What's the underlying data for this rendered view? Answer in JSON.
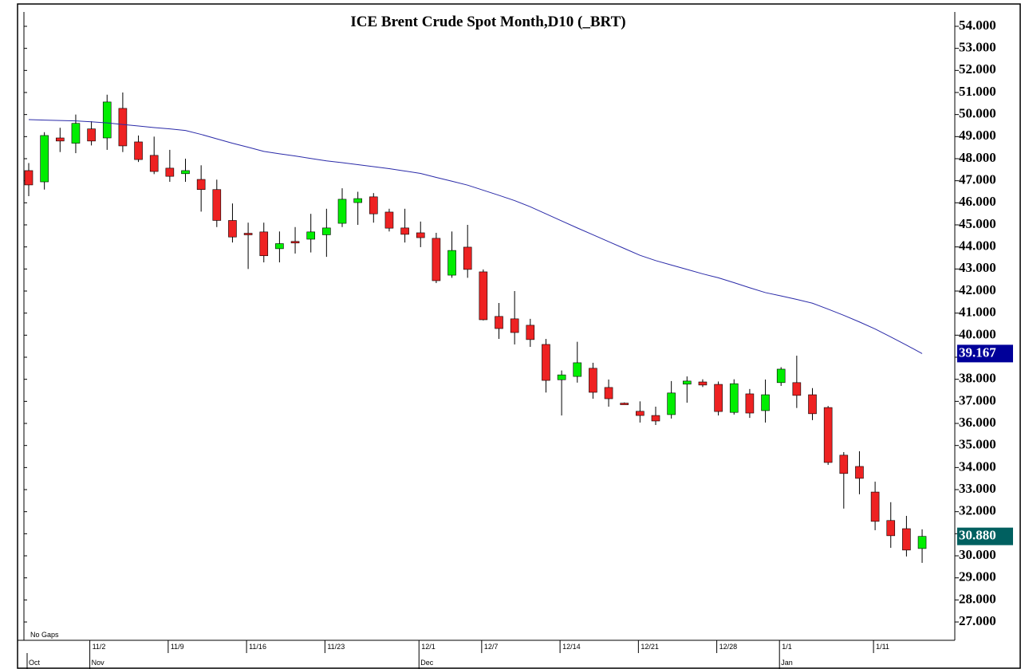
{
  "chart_data": {
    "type": "candlestick",
    "title": "ICE Brent Crude Spot Month,D10 (_BRT)",
    "note": "No Gaps",
    "categories": [
      null,
      null,
      null,
      null,
      "11/2",
      null,
      null,
      null,
      null,
      "11/9",
      null,
      null,
      null,
      null,
      "11/16",
      null,
      null,
      null,
      null,
      "11/23",
      null,
      null,
      null,
      null,
      null,
      "12/1",
      null,
      null,
      null,
      "12/7",
      null,
      null,
      null,
      null,
      "12/14",
      null,
      null,
      null,
      null,
      "12/21",
      null,
      null,
      null,
      null,
      "12/28",
      null,
      null,
      null,
      "1/1",
      null,
      null,
      null,
      null,
      null,
      "1/11",
      null,
      null,
      null
    ],
    "months": [
      "Oct",
      null,
      null,
      null,
      "Nov",
      null,
      null,
      null,
      null,
      null,
      null,
      null,
      null,
      null,
      null,
      null,
      null,
      null,
      null,
      null,
      null,
      null,
      null,
      null,
      null,
      "Dec",
      null,
      null,
      null,
      null,
      null,
      null,
      null,
      null,
      null,
      null,
      null,
      null,
      null,
      null,
      null,
      null,
      null,
      null,
      null,
      null,
      null,
      null,
      "Jan",
      null,
      null,
      null,
      null,
      null,
      null,
      null,
      null,
      null
    ],
    "open": [
      47.46,
      46.95,
      48.94,
      48.7,
      49.35,
      48.94,
      50.28,
      48.76,
      48.15,
      47.57,
      47.32,
      47.06,
      46.6,
      45.2,
      44.62,
      44.68,
      43.92,
      44.25,
      44.35,
      44.55,
      45.07,
      46.01,
      46.27,
      45.58,
      44.86,
      44.64,
      44.39,
      42.72,
      43.99,
      42.87,
      40.85,
      40.74,
      40.45,
      39.58,
      37.98,
      38.13,
      38.5,
      37.63,
      36.92,
      36.55,
      36.36,
      36.4,
      37.78,
      37.88,
      37.77,
      36.5,
      37.34,
      36.58,
      37.85,
      37.85,
      37.3,
      36.72,
      34.56,
      34.05,
      32.89,
      31.6,
      31.23,
      30.33
    ],
    "high": [
      47.8,
      49.2,
      49.4,
      50.0,
      49.7,
      50.9,
      51.0,
      49.05,
      49.0,
      48.4,
      48.0,
      47.7,
      47.05,
      45.97,
      45.1,
      45.1,
      44.7,
      44.9,
      45.5,
      45.73,
      46.66,
      46.5,
      46.44,
      45.73,
      45.73,
      45.15,
      44.64,
      44.7,
      45.0,
      42.98,
      41.46,
      42.0,
      40.74,
      39.83,
      38.4,
      39.7,
      38.75,
      37.99,
      36.95,
      37.0,
      36.76,
      37.92,
      38.13,
      38.0,
      37.9,
      38.0,
      37.56,
      37.99,
      38.55,
      39.07,
      37.6,
      36.79,
      34.7,
      34.74,
      33.36,
      32.43,
      31.81,
      31.2
    ],
    "low": [
      46.3,
      46.6,
      48.3,
      48.25,
      48.6,
      48.4,
      48.3,
      47.85,
      47.3,
      46.95,
      46.95,
      45.6,
      44.9,
      44.2,
      43.0,
      43.3,
      43.3,
      43.7,
      43.75,
      43.55,
      44.9,
      45.0,
      45.1,
      44.7,
      44.2,
      43.99,
      42.36,
      42.6,
      42.6,
      40.67,
      39.83,
      39.58,
      39.47,
      37.4,
      36.36,
      37.85,
      37.12,
      36.76,
      36.85,
      36.04,
      35.93,
      36.22,
      36.94,
      37.65,
      36.36,
      36.4,
      36.25,
      36.04,
      37.7,
      36.7,
      36.15,
      34.12,
      32.14,
      32.79,
      31.16,
      30.36,
      29.97,
      29.68
    ],
    "close": [
      46.81,
      49.05,
      48.8,
      49.6,
      48.8,
      50.57,
      48.58,
      47.96,
      47.42,
      47.2,
      47.46,
      46.6,
      45.2,
      44.45,
      44.58,
      43.6,
      44.15,
      44.2,
      44.68,
      44.86,
      46.16,
      46.19,
      45.5,
      44.85,
      44.57,
      44.42,
      42.47,
      43.84,
      42.98,
      40.7,
      40.3,
      40.12,
      39.8,
      37.95,
      38.2,
      38.75,
      37.41,
      37.12,
      36.88,
      36.36,
      36.11,
      37.38,
      37.92,
      37.74,
      36.54,
      37.8,
      36.47,
      37.3,
      38.46,
      37.27,
      36.44,
      34.23,
      33.73,
      33.51,
      31.56,
      30.91,
      30.26,
      30.88
    ],
    "value_labels_close_last": "30.880",
    "up_color": "#00ee00",
    "down_color": "#ee2222",
    "last_label_color": "#006060",
    "ma": {
      "color": "#2a2aa8",
      "label": "39.167",
      "values": [
        49.77,
        49.75,
        49.73,
        49.71,
        49.67,
        49.62,
        49.55,
        49.48,
        49.41,
        49.35,
        49.28,
        49.1,
        48.9,
        48.7,
        48.52,
        48.33,
        48.22,
        48.12,
        48.01,
        47.9,
        47.82,
        47.73,
        47.64,
        47.55,
        47.44,
        47.33,
        47.15,
        46.98,
        46.8,
        46.57,
        46.34,
        46.1,
        45.82,
        45.5,
        45.18,
        44.86,
        44.55,
        44.24,
        43.93,
        43.62,
        43.38,
        43.18,
        42.98,
        42.78,
        42.6,
        42.38,
        42.15,
        41.93,
        41.78,
        41.62,
        41.45,
        41.18,
        40.9,
        40.6,
        40.28,
        39.92,
        39.55,
        39.167
      ],
      "label_color": "#000099"
    },
    "ylim": [
      26.17,
      54.65
    ],
    "yticks": [
      {
        "value": 27,
        "label": "27.000"
      },
      {
        "value": 28,
        "label": "28.000"
      },
      {
        "value": 29,
        "label": "29.000"
      },
      {
        "value": 30,
        "label": "30.000"
      },
      {
        "value": 31,
        "label": "31.000"
      },
      {
        "value": 32,
        "label": "32.000"
      },
      {
        "value": 33,
        "label": "33.000"
      },
      {
        "value": 34,
        "label": "34.000"
      },
      {
        "value": 35,
        "label": "35.000"
      },
      {
        "value": 36,
        "label": "36.000"
      },
      {
        "value": 37,
        "label": "37.000"
      },
      {
        "value": 38,
        "label": "38.000"
      },
      {
        "value": 39,
        "label": "39.000"
      },
      {
        "value": 40,
        "label": "40.000"
      },
      {
        "value": 41,
        "label": "41.000"
      },
      {
        "value": 42,
        "label": "42.000"
      },
      {
        "value": 43,
        "label": "43.000"
      },
      {
        "value": 44,
        "label": "44.000"
      },
      {
        "value": 45,
        "label": "45.000"
      },
      {
        "value": 46,
        "label": "46.000"
      },
      {
        "value": 47,
        "label": "47.000"
      },
      {
        "value": 48,
        "label": "48.000"
      },
      {
        "value": 49,
        "label": "49.000"
      },
      {
        "value": 50,
        "label": "50.000"
      },
      {
        "value": 51,
        "label": "51.000"
      },
      {
        "value": 52,
        "label": "52.000"
      },
      {
        "value": 53,
        "label": "53.000"
      },
      {
        "value": 54,
        "label": "54.000"
      }
    ]
  }
}
